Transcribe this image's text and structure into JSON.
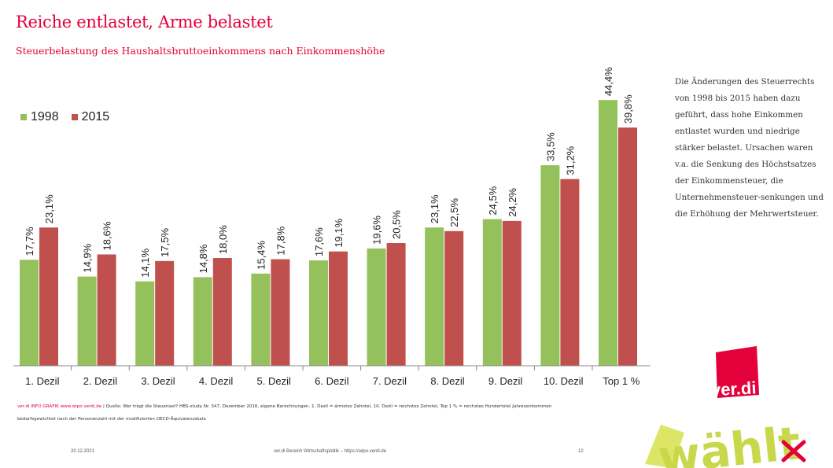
{
  "header": {
    "title": "Reiche entlastet, Arme belastet",
    "subtitle": "Steuerbelastung des Haushaltsbruttoeinkommens nach Einkommenshöhe"
  },
  "chart_data": {
    "type": "bar",
    "title": "Steuerbelastung des Haushaltsbruttoeinkommens nach Einkommenshöhe",
    "xlabel": "",
    "ylabel": "",
    "ylim": [
      0,
      46
    ],
    "categories": [
      "1. Dezil",
      "2. Dezil",
      "3. Dezil",
      "4. Dezil",
      "5. Dezil",
      "6. Dezil",
      "7. Dezil",
      "8. Dezil",
      "9. Dezil",
      "10. Dezil",
      "Top 1 %"
    ],
    "series": [
      {
        "name": "1998",
        "color": "#94c15b",
        "values": [
          17.7,
          14.9,
          14.1,
          14.8,
          15.4,
          17.6,
          19.6,
          23.1,
          24.5,
          33.5,
          44.4
        ],
        "labels": [
          "17,7%",
          "14,9%",
          "14,1%",
          "14,8%",
          "15,4%",
          "17,6%",
          "19,6%",
          "23,1%",
          "24,5%",
          "33,5%",
          "44,4%"
        ]
      },
      {
        "name": "2015",
        "color": "#c0504d",
        "values": [
          23.1,
          18.6,
          17.5,
          18.0,
          17.8,
          19.1,
          20.5,
          22.5,
          24.2,
          31.2,
          39.8
        ],
        "labels": [
          "23,1%",
          "18,6%",
          "17,5%",
          "18,0%",
          "17,8%",
          "19,1%",
          "20,5%",
          "22,5%",
          "24,2%",
          "31,2%",
          "39,8%"
        ]
      }
    ],
    "legend_position": "top-left",
    "grid": false
  },
  "sidebar": {
    "text": "Die Änderungen des Steuerrechts von 1998 bis 2015 haben dazu geführt, dass hohe Einkommen entlastet wurden und niedrige stärker belastet. Ursachen waren v.a. die Senkung des Höchstsatzes der Einkommensteuer, die Unternehmensteuer-senkungen und die Erhöhung der Mehrwertsteuer."
  },
  "footnote": {
    "brand": "ver.di INFO GRAFIK www.wipo.verdi.de",
    "text": "| Quelle: Wer trägt die Steuerlast? HBS-study Nr. 347, Dezember 2016, eigene Berechnungen. 1. Dezil = ärmstes Zehntel, 10. Dezil = reichstes Zehntel, Top 1 % = reichstes Hundertstel Jahreseinkommen bedarfsgewichtet nach der Personenzahl mit der modifizierten OECD-Äquivalenzskala"
  },
  "footer": {
    "date": "20.12.2021",
    "source": "ver.di Bereich Wirtschaftspolitik – https://wipo.verdi.de",
    "page": "12"
  },
  "logo": {
    "brand": "ver.di",
    "campaign": "wählt"
  },
  "colors": {
    "accent": "#e4003a",
    "bar1998": "#94c15b",
    "bar2015": "#c0504d"
  }
}
